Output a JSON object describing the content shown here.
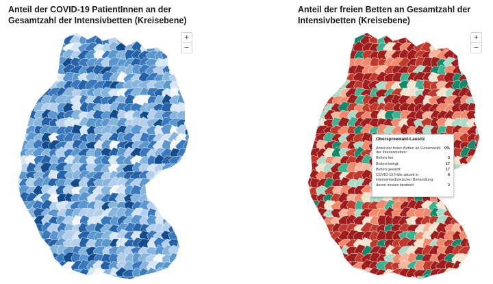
{
  "left_panel": {
    "title": "Anteil der COVID-19 PatientInnen an der Gesamtzahl der Intensivbetten (Kreisebene)",
    "zoom_in": "+",
    "zoom_out": "−",
    "palette": [
      "#f4f8fd",
      "#d6e6f5",
      "#b3cfeb",
      "#85b4dd",
      "#5b97cf",
      "#3a78bd",
      "#2463a8",
      "#134c8c"
    ]
  },
  "right_panel": {
    "title": "Anteil der freien Betten an Gesamtzahl der Intensivbetten (Kreisebene)",
    "zoom_in": "+",
    "zoom_out": "−",
    "palette": [
      "#a01d1d",
      "#c0392b",
      "#f18a6c",
      "#f7b59c",
      "#f3e4cf",
      "#a9dcc8",
      "#3bb391",
      "#0f8a6a"
    ]
  },
  "tooltip": {
    "title": "Oberspreewald-Lausitz",
    "rows": [
      {
        "label": "Anteil der freien Betten an Gesamtzahl der Intensivbetten:",
        "value": "0%"
      },
      {
        "label": "Betten frei:",
        "value": "0"
      },
      {
        "label": "Betten belegt:",
        "value": "17"
      },
      {
        "label": "Betten gesamt:",
        "value": "17"
      },
      {
        "label": "COVID-19 Fälle aktuell in intensivmedizinischer Behandlung:",
        "value": "8"
      },
      {
        "label": "davon invasiv beatmet:",
        "value": "2"
      }
    ]
  }
}
